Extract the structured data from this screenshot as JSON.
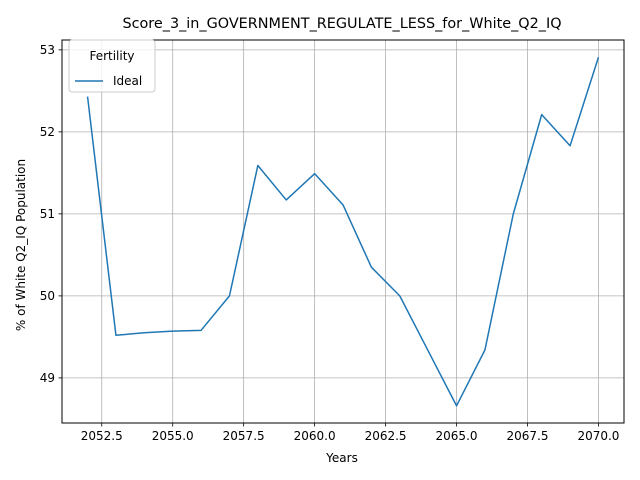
{
  "chart_data": {
    "type": "line",
    "title": "Score_3_in_GOVERNMENT_REGULATE_LESS_for_White_Q2_IQ",
    "xlabel": "Years",
    "ylabel": "% of White Q2_IQ Population",
    "xlim": [
      2051.1,
      2070.9
    ],
    "ylim": [
      48.45,
      53.12
    ],
    "xticks": [
      "2052.5",
      "2055.0",
      "2057.5",
      "2060.0",
      "2062.5",
      "2065.0",
      "2067.5",
      "2070.0"
    ],
    "yticks": [
      "49",
      "50",
      "51",
      "52",
      "53"
    ],
    "grid": true,
    "legend": {
      "title": "Fertility",
      "position": "top-left"
    },
    "series": [
      {
        "name": "Ideal",
        "color": "#1f77b4",
        "x": [
          2052,
          2053,
          2054,
          2055,
          2056,
          2057,
          2058,
          2059,
          2060,
          2061,
          2062,
          2063,
          2064,
          2065,
          2066,
          2067,
          2068,
          2069,
          2070
        ],
        "y": [
          52.43,
          49.52,
          49.55,
          49.57,
          49.58,
          50.0,
          51.59,
          51.17,
          51.49,
          51.11,
          50.35,
          50.0,
          49.33,
          48.66,
          49.34,
          51.0,
          52.21,
          51.83,
          52.91
        ]
      }
    ]
  }
}
